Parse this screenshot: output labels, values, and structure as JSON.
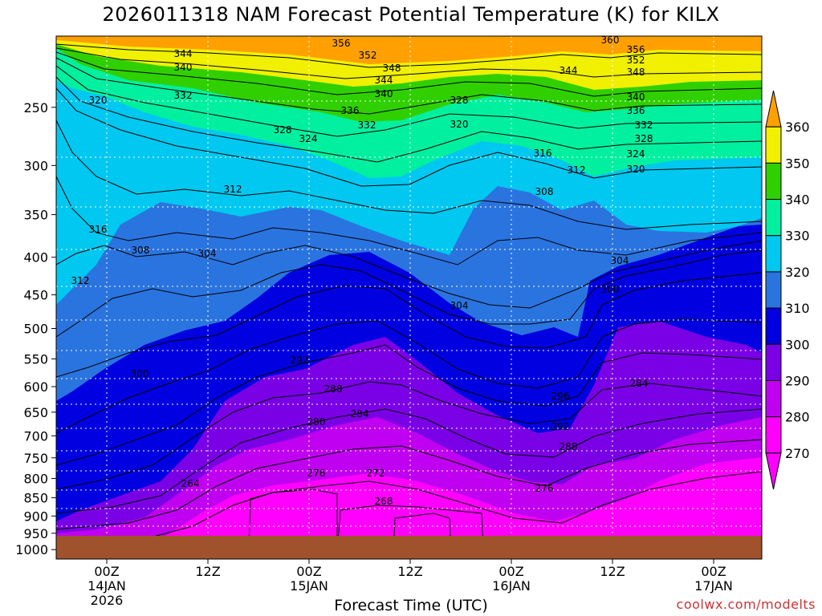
{
  "title": "2026011318 NAM Forecast Potential Temperature (K) for KILX",
  "xlabel": "Forecast Time (UTC)",
  "credit": "coolwx.com/modelts",
  "chart_data": {
    "type": "contour",
    "title": "2026011318 NAM Forecast Potential Temperature (K) for KILX",
    "xlabel": "Forecast Time (UTC)",
    "ylabel": "",
    "y_scale": "log",
    "y_inverted": true,
    "y_ticks": [
      250,
      300,
      350,
      400,
      450,
      500,
      550,
      600,
      650,
      700,
      750,
      800,
      850,
      900,
      950,
      1000
    ],
    "y_range_hPa": [
      200,
      1030
    ],
    "x_range_hours_utc": [
      "2026-01-13 18Z",
      "2026-01-17 06Z"
    ],
    "x_ticks": [
      {
        "line1": "00Z",
        "line2": "14JAN",
        "line3": "2026"
      },
      {
        "line1": "12Z",
        "line2": "",
        "line3": ""
      },
      {
        "line1": "00Z",
        "line2": "15JAN",
        "line3": ""
      },
      {
        "line1": "12Z",
        "line2": "",
        "line3": ""
      },
      {
        "line1": "00Z",
        "line2": "16JAN",
        "line3": ""
      },
      {
        "line1": "12Z",
        "line2": "",
        "line3": ""
      },
      {
        "line1": "00Z",
        "line2": "17JAN",
        "line3": ""
      }
    ],
    "colorbar": {
      "levels": [
        270,
        280,
        290,
        300,
        310,
        320,
        330,
        340,
        350,
        360
      ],
      "colors": [
        "#ff00ff",
        "#c000f0",
        "#7a00e6",
        "#0000e0",
        "#2a74e0",
        "#00c8f0",
        "#00f0a0",
        "#30d000",
        "#f0f000",
        "#ffa000"
      ]
    },
    "contour_interval": 4,
    "grid": true,
    "contour_labels": [
      "356",
      "352",
      "344",
      "340",
      "348",
      "360",
      "356",
      "352",
      "348",
      "344",
      "344",
      "340",
      "332",
      "320",
      "336",
      "332",
      "328",
      "340",
      "336",
      "332",
      "328",
      "324",
      "320",
      "328",
      "324",
      "316",
      "312",
      "320",
      "316",
      "308",
      "312",
      "308",
      "304",
      "304",
      "312",
      "300",
      "304",
      "300",
      "292",
      "288",
      "296",
      "292",
      "284",
      "284",
      "280",
      "288",
      "276",
      "272",
      "276",
      "264",
      "268"
    ]
  }
}
